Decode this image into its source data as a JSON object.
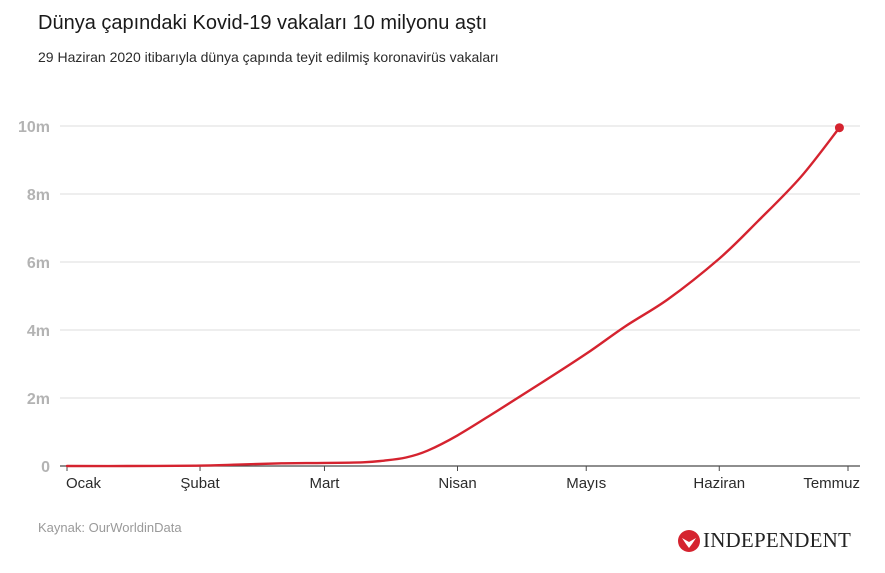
{
  "chart_data": {
    "type": "line",
    "title": "Dünya çapındaki Kovid-19 vakaları 10 milyonu aştı",
    "subtitle": "29 Haziran 2020 itibarıyla dünya çapında teyit edilmiş koronavirüs vakaları",
    "source": "Kaynak: OurWorldinData",
    "xlabel": "",
    "ylabel": "",
    "ylim": [
      0,
      10
    ],
    "yticks": [
      {
        "value": 0,
        "label": "0"
      },
      {
        "value": 2,
        "label": "2m"
      },
      {
        "value": 4,
        "label": "4m"
      },
      {
        "value": 6,
        "label": "6m"
      },
      {
        "value": 8,
        "label": "8m"
      },
      {
        "value": 10,
        "label": "10m"
      }
    ],
    "xlim": [
      "2020-01-01",
      "2020-07-01"
    ],
    "xticks": [
      {
        "date": "2020-01-01",
        "label": "Ocak"
      },
      {
        "date": "2020-02-01",
        "label": "Şubat"
      },
      {
        "date": "2020-03-01",
        "label": "Mart"
      },
      {
        "date": "2020-04-01",
        "label": "Nisan"
      },
      {
        "date": "2020-05-01",
        "label": "Mayıs"
      },
      {
        "date": "2020-06-01",
        "label": "Haziran"
      },
      {
        "date": "2020-07-01",
        "label": "Temmuz"
      }
    ],
    "grid": true,
    "series": [
      {
        "color": "#d5232f",
        "points": [
          {
            "x": "2020-01-01",
            "y": 0
          },
          {
            "x": "2020-01-15",
            "y": 0
          },
          {
            "x": "2020-01-31",
            "y": 0.01
          },
          {
            "x": "2020-02-10",
            "y": 0.04
          },
          {
            "x": "2020-02-20",
            "y": 0.08
          },
          {
            "x": "2020-03-01",
            "y": 0.09
          },
          {
            "x": "2020-03-10",
            "y": 0.11
          },
          {
            "x": "2020-03-15",
            "y": 0.16
          },
          {
            "x": "2020-03-20",
            "y": 0.25
          },
          {
            "x": "2020-03-25",
            "y": 0.45
          },
          {
            "x": "2020-04-01",
            "y": 0.9
          },
          {
            "x": "2020-04-10",
            "y": 1.6
          },
          {
            "x": "2020-04-20",
            "y": 2.4
          },
          {
            "x": "2020-05-01",
            "y": 3.3
          },
          {
            "x": "2020-05-10",
            "y": 4.1
          },
          {
            "x": "2020-05-20",
            "y": 4.9
          },
          {
            "x": "2020-06-01",
            "y": 6.1
          },
          {
            "x": "2020-06-10",
            "y": 7.2
          },
          {
            "x": "2020-06-20",
            "y": 8.5
          },
          {
            "x": "2020-06-29",
            "y": 9.95
          }
        ]
      }
    ]
  },
  "branding": {
    "publisher": "INDEPENDENT",
    "accent_color": "#d5232f"
  }
}
